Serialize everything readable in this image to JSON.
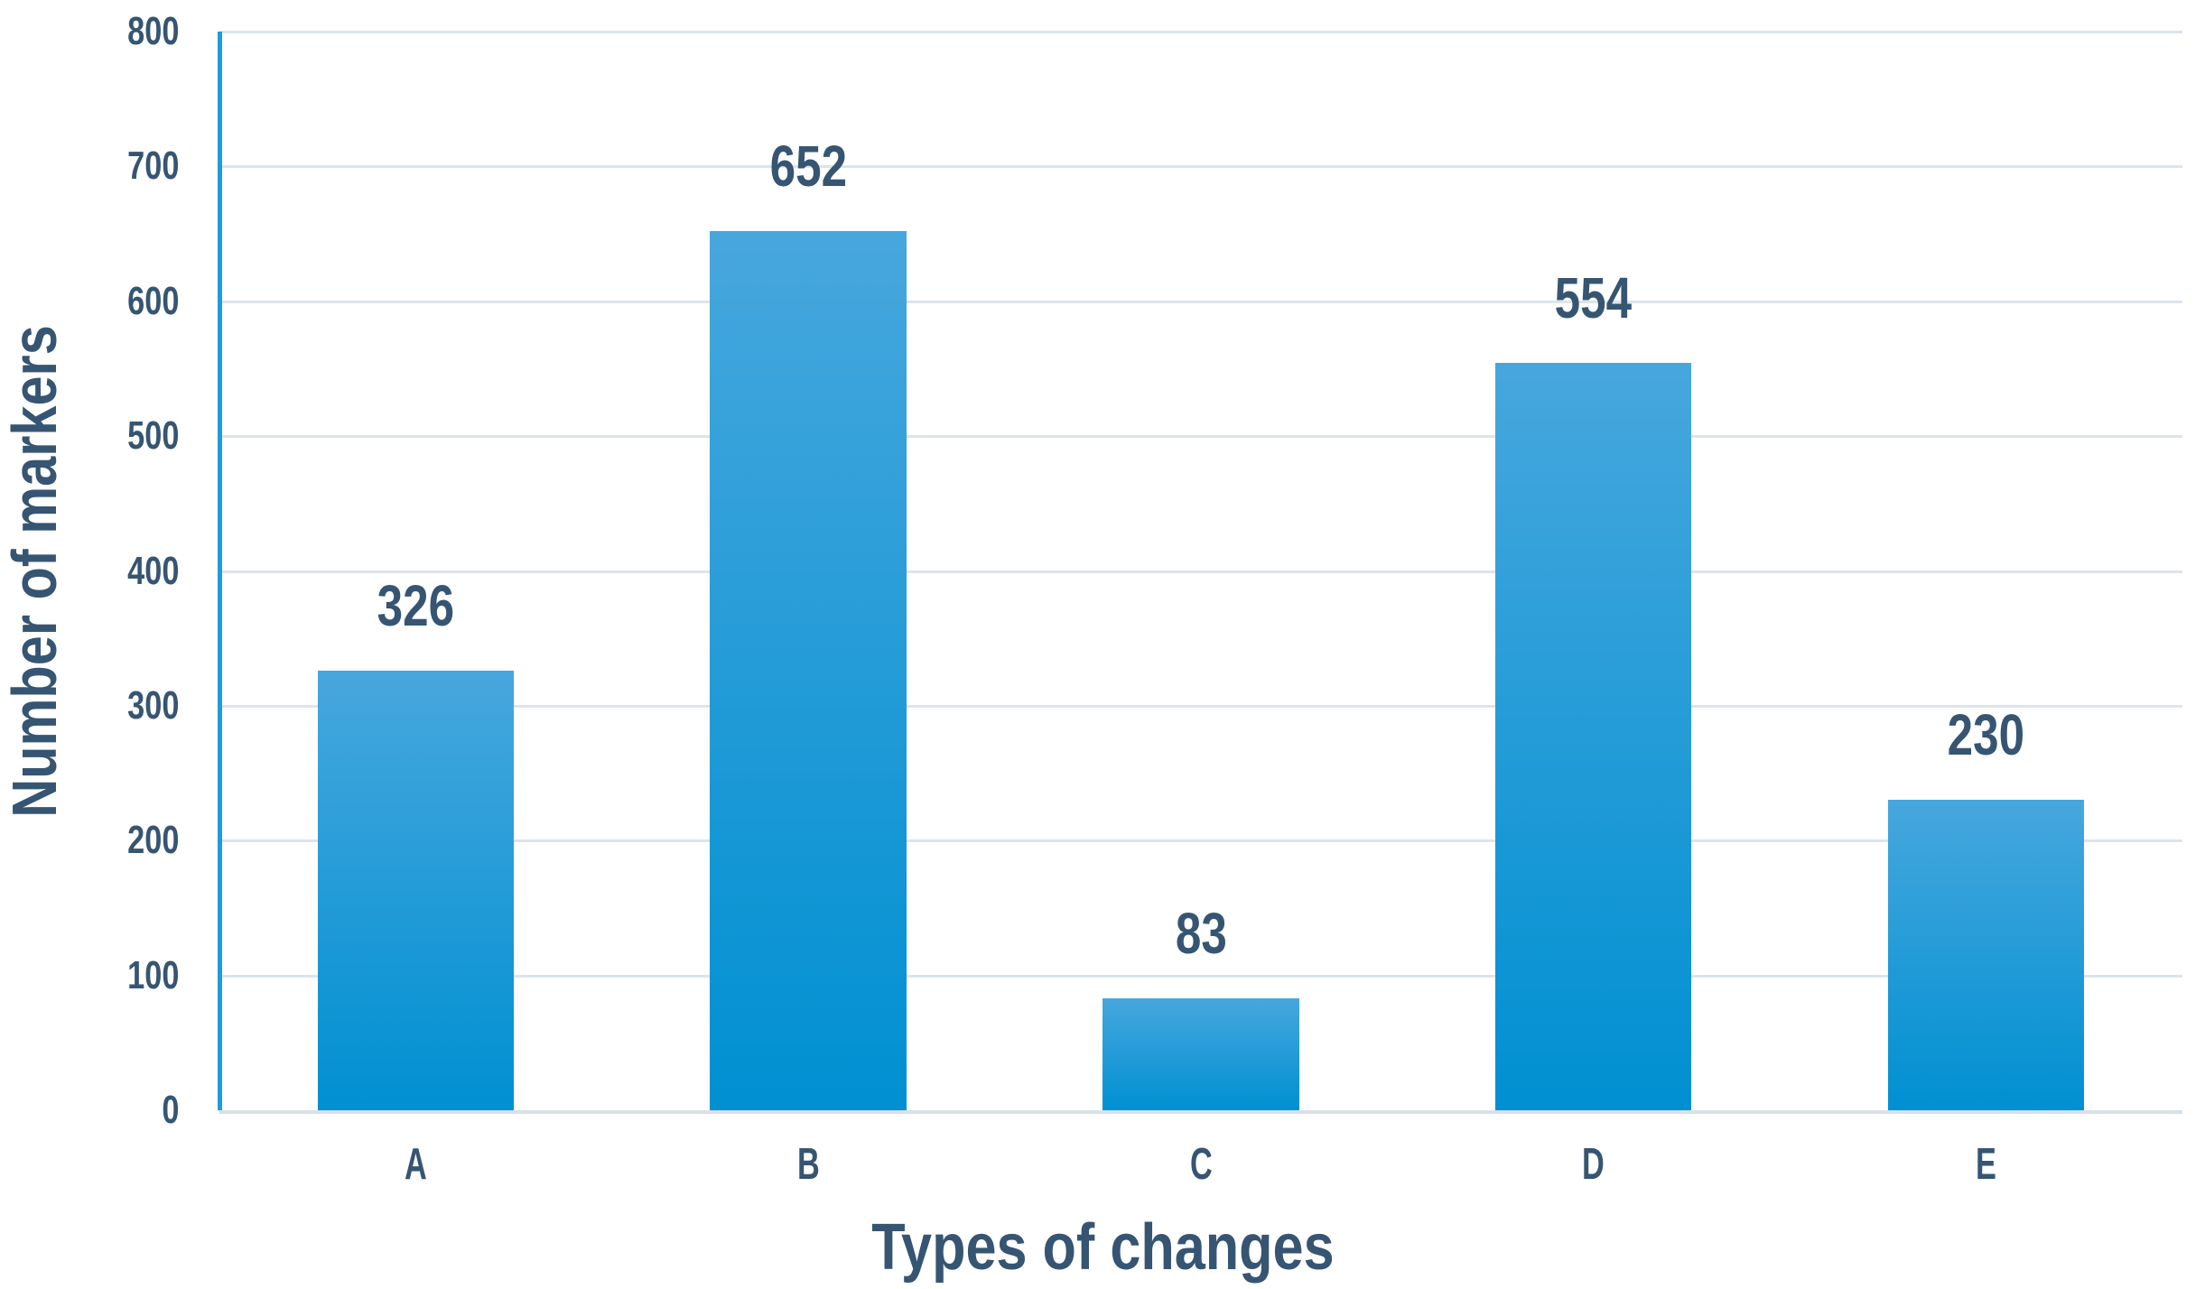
{
  "colors": {
    "background": "#ffffff",
    "text": "#365572",
    "axis_line": "#1d9ce0",
    "gridline": "#dde4ec",
    "baseline": "#d8e0e9",
    "bar_top": "#47a7dd",
    "bar_bottom": "#0090d2"
  },
  "chart_data": {
    "type": "bar",
    "categories": [
      "A",
      "B",
      "C",
      "D",
      "E"
    ],
    "values": [
      326,
      652,
      83,
      554,
      230
    ],
    "title": "",
    "xlabel": "Types of changes",
    "ylabel": "Number of markers",
    "ylim": [
      0,
      800
    ],
    "yticks": [
      0,
      100,
      200,
      300,
      400,
      500,
      600,
      700,
      800
    ],
    "grid": true,
    "legend": false,
    "data_labels": true,
    "bar_gradient": [
      "#47a7dd",
      "#0090d2"
    ]
  }
}
